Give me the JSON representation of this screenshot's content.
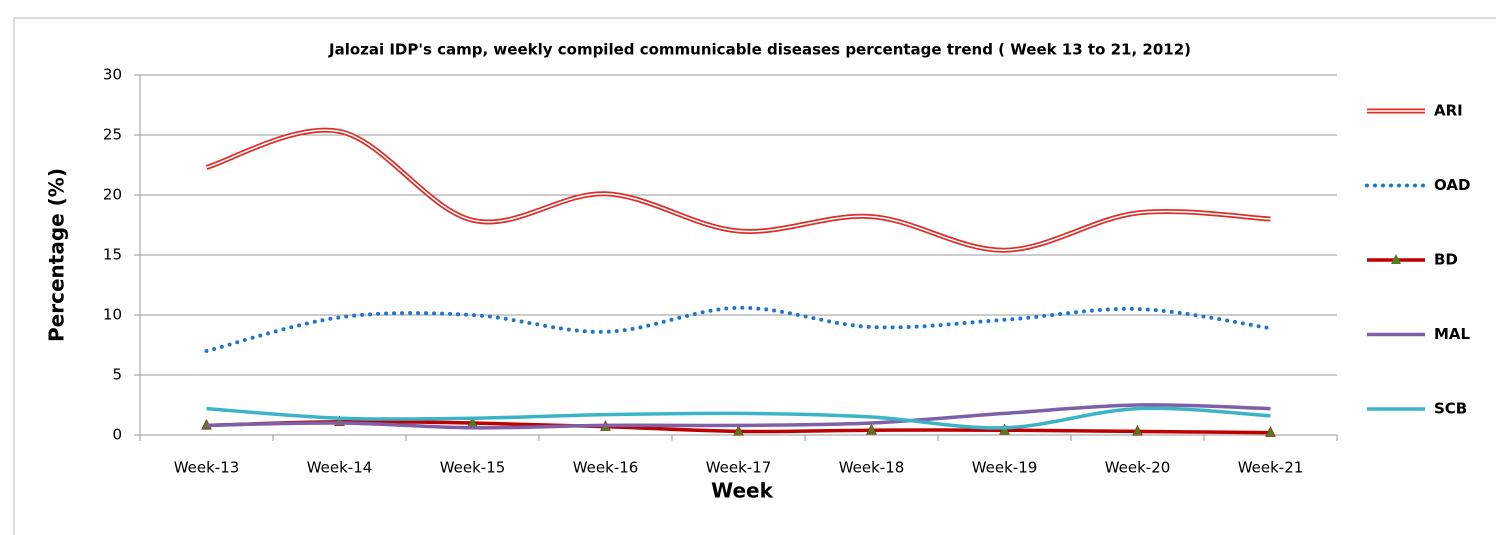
{
  "chart_data": {
    "type": "line",
    "title": "Jalozai IDP's camp, weekly compiled communicable  diseases percentage trend ( Week 13 to 21, 2012)",
    "x_label": "Week",
    "y_label": "Percentage (%)",
    "categories": [
      "Week-13",
      "Week-14",
      "Week-15",
      "Week-16",
      "Week-17",
      "Week-18",
      "Week-19",
      "Week-20",
      "Week-21"
    ],
    "series": [
      {
        "name": "ARI",
        "color": "#d9302c",
        "line_style": "double",
        "values": [
          22.3,
          25.3,
          17.9,
          20.1,
          17.0,
          18.2,
          15.4,
          18.5,
          18.0
        ]
      },
      {
        "name": "OAD",
        "color": "#1f77c8",
        "line_style": "dotted",
        "values": [
          7.0,
          9.8,
          10.0,
          8.6,
          10.6,
          9.0,
          9.6,
          10.5,
          8.9
        ]
      },
      {
        "name": "BD",
        "color": "#c00000",
        "line_style": "solid",
        "marker": "triangle",
        "marker_color": "#4f7d1f",
        "values": [
          0.8,
          1.1,
          1.0,
          0.7,
          0.3,
          0.4,
          0.4,
          0.3,
          0.2
        ]
      },
      {
        "name": "MAL",
        "color": "#7f5fa8",
        "line_style": "solid",
        "values": [
          0.8,
          1.0,
          0.6,
          0.8,
          0.8,
          1.0,
          1.8,
          2.5,
          2.2
        ]
      },
      {
        "name": "SCB",
        "color": "#3cb4c8",
        "line_style": "solid",
        "values": [
          2.2,
          1.4,
          1.4,
          1.7,
          1.8,
          1.5,
          0.6,
          2.2,
          1.6
        ]
      }
    ],
    "ylim": [
      0,
      30
    ],
    "yticks": [
      0,
      5,
      10,
      15,
      20,
      25,
      30
    ],
    "grid": true,
    "smooth": true,
    "legend": "right"
  }
}
